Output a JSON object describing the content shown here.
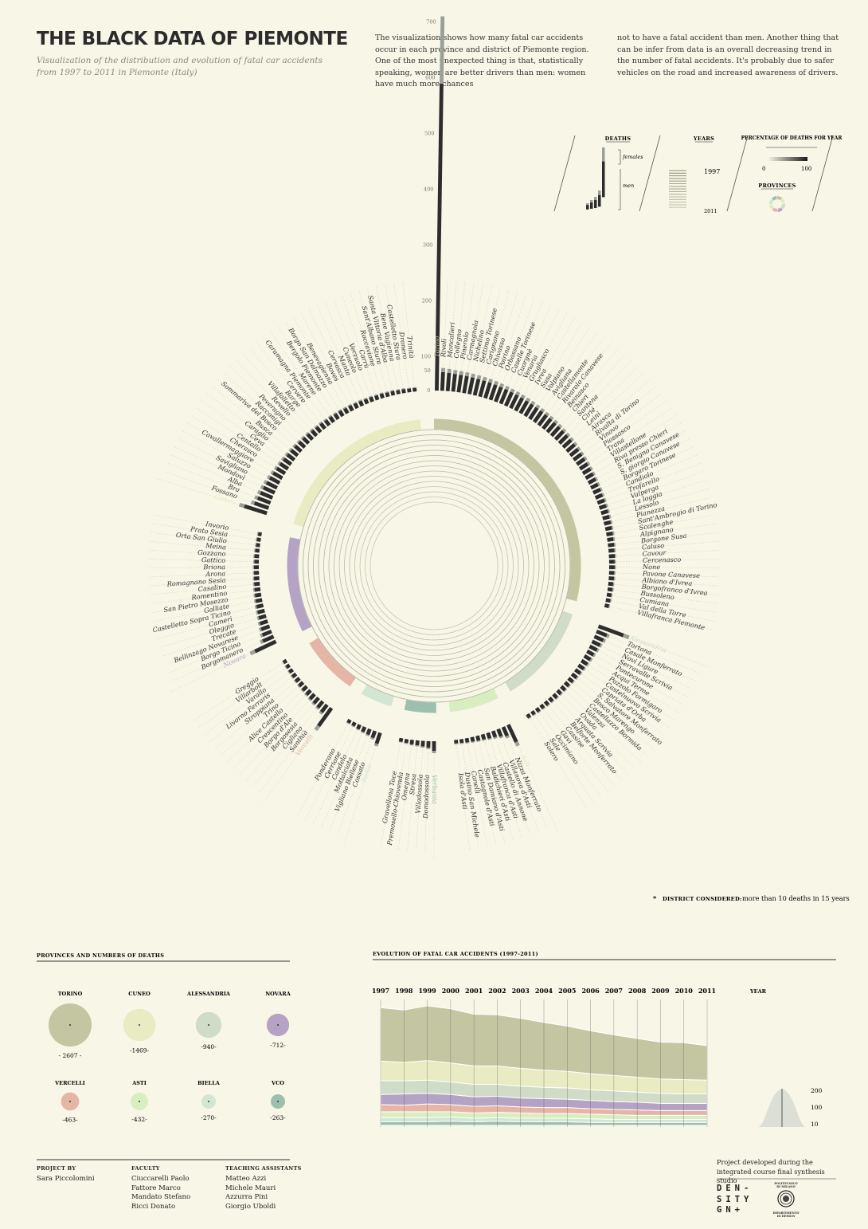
{
  "header": {
    "title": "THE BLACK DATA OF PIEMONTE",
    "subtitle": "Visualization of the distribution and evolution of fatal car accidents from 1997 to 2011 in Piemonte (Italy)",
    "intro_col1": "The visualization shows how many fatal car accidents occur in each province and district of Piemonte region. One of the most unexpected thing is that, statistically speaking, women are better drivers than men: women have much more chances",
    "intro_col2": "not to have a fatal accident than men. Another thing that can be infer from data is an overall decreasing trend in the number of fatal accidents. It's probably due to safer vehicles on the road and increased awareness of drivers."
  },
  "legend": {
    "deaths_title": "DEATHS",
    "females_label": "females",
    "men_label": "men",
    "years_title": "YEARS",
    "year_start": "1997",
    "year_end": "2011",
    "percentage_title": "PERCENTAGE OF DEATHS FOR YEAR",
    "pct_min": "0",
    "pct_max": "100",
    "provinces_title": "PROVINCES"
  },
  "footnote": {
    "star": "*",
    "label": "DISTRICT CONSIDERED:",
    "text": "more than 10 deaths in 15 years"
  },
  "colors": {
    "Torino": "#c3c6a0",
    "Cuneo": "#e9ebc3",
    "Alessandria": "#d0dcc8",
    "Novara": "#b4a3c5",
    "Vercelli": "#e7b5a6",
    "Asti": "#d9eec0",
    "Biella": "#d3e5d3",
    "VCO": "#9cc0ad",
    "bar_men": "#2d2d2d",
    "bar_women": "#9aa097"
  },
  "chart_data": [
    {
      "type": "radial-bar",
      "title": "",
      "axis_ticks": [
        "0",
        "50",
        "100",
        "200",
        "300",
        "400",
        "500",
        "600",
        "700"
      ],
      "provinces": [
        {
          "name": "Torino",
          "districts": [
            "Torino",
            "Rivoli",
            "Moncalieri",
            "Collegno",
            "Pinerolo",
            "Carmagnola",
            "Nichelino",
            "Settimo Torinese",
            "Carignano",
            "Chivasso",
            "Poirino",
            "Orbassano",
            "Caselle Torinese",
            "Cuorgnè",
            "Venaria",
            "Grugliasco",
            "Ivrea",
            "Susa",
            "Volpiano",
            "Avigliana",
            "Castellamonte",
            "Rivarolo Canavese",
            "Beinasco",
            "Chieri",
            "Santena",
            "Cirié",
            "Leinì",
            "Airasca",
            "Rivalta di Torino",
            "Vinovo",
            "Piossasco",
            "Trana",
            "Villastellone",
            "Riva presso Chieri",
            "S. Benigno Canavese",
            "S. giorgio Canavese",
            "Borgaro Torinese",
            "Candiolo",
            "Trofarello",
            "Valperga",
            "La loggia",
            "Lessolo",
            "Pianezza",
            "Sant'Ambrogio di Torino",
            "Scalenghe",
            "Alpignano",
            "Borgone Susa",
            "Caluso",
            "Cavour",
            "Cercenasco",
            "None",
            "Pavone Canavese",
            "Albiano d'Ivrea",
            "Borgofranco d'Ivrea",
            "Bussoleno",
            "Cumiana",
            "Val della Torre",
            "Villafranca Piemonte"
          ],
          "values": [
            710,
            60,
            58,
            56,
            55,
            54,
            53,
            52,
            51,
            50,
            49,
            48,
            47,
            46,
            45,
            44,
            43,
            42,
            41,
            40,
            39,
            38,
            37,
            36,
            35,
            34,
            33,
            32,
            31,
            30,
            29,
            28,
            27,
            26,
            25,
            24,
            24,
            23,
            23,
            22,
            22,
            21,
            21,
            20,
            20,
            19,
            19,
            18,
            18,
            17,
            17,
            16,
            16,
            15,
            15,
            14,
            14,
            13
          ]
        },
        {
          "name": "Alessandria",
          "districts": [
            "Alessandria",
            "Tortona",
            "Casale Monferrato",
            "Novi Ligure",
            "Serravalle Scrivia",
            "Pontecurone",
            "Acqui Terme",
            "Pozzolo Formigaro",
            "Castelnuovo Scrivia",
            "Capriata d'Orba",
            "S. Salvatore Monferrato",
            "Bosco Marengo",
            "Castellazzo Bormida",
            "Valenza",
            "Ovada",
            "Arquata Scrivia",
            "Belforte Monferrato",
            "Cassine",
            "Gavi",
            "Occimiano",
            "Sale",
            "Solero"
          ],
          "values": [
            95,
            34,
            30,
            27,
            25,
            23,
            22,
            21,
            20,
            19,
            18,
            17,
            16,
            16,
            15,
            15,
            14,
            14,
            13,
            13,
            12,
            12
          ]
        },
        {
          "name": "Asti",
          "districts": [
            "Asti",
            "Nizza Monferrato",
            "Villanova d'Asti",
            "Castello di Annone",
            "Villafranca d'Asti",
            "Baldichieri d'Asti",
            "San Damiano d'Asti",
            "Castagnole d'Asti",
            "Canelli",
            "Dusino San Michele",
            "Isola d'Asti"
          ],
          "values": [
            62,
            30,
            24,
            20,
            18,
            16,
            15,
            14,
            13,
            12,
            11
          ]
        },
        {
          "name": "Verbania",
          "districts": [
            "Verbania",
            "Domodossola",
            "Villadossola",
            "Stresa",
            "Omegna",
            "Premosello-Chiovenda",
            "Gravellona Toce"
          ],
          "values": [
            30,
            20,
            17,
            15,
            14,
            12,
            11
          ]
        },
        {
          "name": "Biella",
          "districts": [
            "Biella",
            "Cossato",
            "Vigliano Biellese",
            "Mottalciata",
            "Candelo",
            "Cerrione",
            "Ponderano"
          ],
          "values": [
            35,
            22,
            18,
            16,
            14,
            12,
            11
          ]
        },
        {
          "name": "Vercelli",
          "districts": [
            "Vercelli",
            "Santhià",
            "Cigliano",
            "Borgosesia",
            "Borgo d'Ale",
            "Crescentino",
            "Alice Castello",
            "Trino",
            "Stroppiana",
            "Livorno Ferraris",
            "Varallo",
            "Villarbolt",
            "Greggio"
          ],
          "values": [
            75,
            28,
            24,
            22,
            20,
            18,
            17,
            16,
            15,
            14,
            13,
            12,
            11
          ]
        },
        {
          "name": "Novara",
          "districts": [
            "Novara",
            "Borgomanero",
            "Borgo Ticino",
            "Bellinzago Novarese",
            "Trecate",
            "Oleggio",
            "Cameri",
            "Castelletto Sopra Ticino",
            "Galliate",
            "San Pietro Mosezzo",
            "Romentino",
            "Casalino",
            "Romagnano Sesia",
            "Arona",
            "Briona",
            "Gattico",
            "Gozzano",
            "Meina",
            "Orta San Giulio",
            "Prato Sesia",
            "Invorio"
          ],
          "values": [
            80,
            36,
            30,
            27,
            25,
            23,
            22,
            21,
            20,
            19,
            18,
            17,
            16,
            15,
            15,
            14,
            14,
            13,
            12,
            12,
            11
          ]
        },
        {
          "name": "Cuneo",
          "districts": [
            "Cuneo",
            "Fossano",
            "Bra",
            "Alba",
            "Mondovì",
            "Savigliano",
            "Saluzzo",
            "Cavallermaggiore",
            "Cherasco",
            "Centallo",
            "Ceva",
            "Caraglio",
            "Busca",
            "Sommariva del Bosco",
            "Racconigi",
            "Peveragno",
            "Revello",
            "Villafalletto",
            "Barge",
            "Cervere",
            "Caramagna Piemonte",
            "Marene",
            "Bergolo Piemonte",
            "Borgo San Dalmazzo",
            "Benevagienna",
            "Boves",
            "Cervasca",
            "Manta",
            "Cuneolo",
            "Verzuolo",
            "Carrù",
            "Roccavione",
            "Sant'Albano Stura",
            "Santa Vittoria d'Alba",
            "Bene Vagienna",
            "Castelletto Stura",
            "Dronero",
            "Trinità"
          ],
          "values": [
            82,
            46,
            42,
            40,
            38,
            36,
            34,
            32,
            30,
            29,
            28,
            27,
            26,
            25,
            24,
            23,
            22,
            21,
            20,
            20,
            19,
            19,
            18,
            18,
            17,
            17,
            16,
            16,
            15,
            15,
            14,
            14,
            13,
            13,
            12,
            12,
            11,
            11
          ]
        }
      ]
    },
    {
      "type": "bubble",
      "title": "PROVINCES AND NUMBERS OF DEATHS",
      "items": [
        {
          "name": "TORINO",
          "value": 2607,
          "label": "- 2607 -",
          "color": "#c3c6a0"
        },
        {
          "name": "CUNEO",
          "value": 1469,
          "label": "-1469-",
          "color": "#e9ebc3"
        },
        {
          "name": "ALESSANDRIA",
          "value": 940,
          "label": "-940-",
          "color": "#d0dcc8"
        },
        {
          "name": "NOVARA",
          "value": 712,
          "label": "-712-",
          "color": "#b4a3c5"
        },
        {
          "name": "VERCELLI",
          "value": 463,
          "label": "-463-",
          "color": "#e7b5a6"
        },
        {
          "name": "ASTI",
          "value": 432,
          "label": "-432-",
          "color": "#d9eec0"
        },
        {
          "name": "BIELLA",
          "value": 270,
          "label": "-270-",
          "color": "#d3e5d3"
        },
        {
          "name": "VCO",
          "value": 263,
          "label": "-263-",
          "color": "#9cc0ad"
        }
      ]
    },
    {
      "type": "area",
      "title": "EVOLUTION OF FATAL CAR ACCIDENTS (1997-2011)",
      "x": [
        "1997",
        "1998",
        "1999",
        "2000",
        "2001",
        "2002",
        "2003",
        "2004",
        "2005",
        "2006",
        "2007",
        "2008",
        "2009",
        "2010",
        "2011"
      ],
      "year_label": "YEAR",
      "year_ticks": [
        "200",
        "100",
        "10"
      ],
      "series": [
        {
          "name": "Torino",
          "values": [
            90,
            88,
            92,
            91,
            87,
            86,
            84,
            80,
            76,
            72,
            68,
            65,
            62,
            62,
            58
          ]
        },
        {
          "name": "Cuneo",
          "values": [
            33,
            31,
            33,
            32,
            31,
            31,
            30,
            29,
            28,
            27,
            26,
            25,
            24,
            24,
            23
          ]
        },
        {
          "name": "Alessandria",
          "values": [
            23,
            22,
            22,
            21,
            21,
            20,
            20,
            19,
            19,
            18,
            18,
            17,
            17,
            16,
            16
          ]
        },
        {
          "name": "Novara",
          "values": [
            17,
            19,
            18,
            17,
            16,
            16,
            15,
            15,
            14,
            14,
            13,
            13,
            12,
            12,
            12
          ]
        },
        {
          "name": "Vercelli",
          "values": [
            12,
            11,
            13,
            12,
            11,
            11,
            10,
            10,
            10,
            9,
            9,
            9,
            8,
            8,
            8
          ]
        },
        {
          "name": "Asti",
          "values": [
            10,
            10,
            10,
            9,
            9,
            9,
            9,
            8,
            8,
            8,
            8,
            7,
            7,
            7,
            7
          ]
        },
        {
          "name": "Biella",
          "values": [
            7,
            7,
            7,
            7,
            6,
            6,
            6,
            6,
            6,
            6,
            5,
            5,
            5,
            5,
            5
          ]
        },
        {
          "name": "VCO",
          "values": [
            6,
            6,
            6,
            7,
            6,
            7,
            6,
            6,
            6,
            5,
            5,
            5,
            5,
            5,
            5
          ]
        }
      ]
    }
  ],
  "bubbles_title": "PROVINCES AND NUMBERS OF DEATHS",
  "area_title": "EVOLUTION OF FATAL CAR ACCIDENTS (1997-2011)",
  "credits": {
    "project_by_title": "PROJECT BY",
    "project_by": [
      "Sara Piccolomini"
    ],
    "faculty_title": "FACULTY",
    "faculty": [
      "Ciuccarelli Paolo",
      "Fattore Marco",
      "Mandato Stefano",
      "Ricci Donato"
    ],
    "ta_title": "TEACHING ASSISTANTS",
    "ta": [
      "Matteo Azzi",
      "Michele Mauri",
      "Azzurra Pini",
      "Giorgio Uboldi"
    ],
    "studio_text": "Project developed during the integrated course final synthesis studio",
    "logo_text": "DEN- SITY GN+",
    "polimi_top": "POLITECNICO DI MILANO",
    "polimi_bottom": "DIPARTIMENTO DI DESIGN"
  }
}
